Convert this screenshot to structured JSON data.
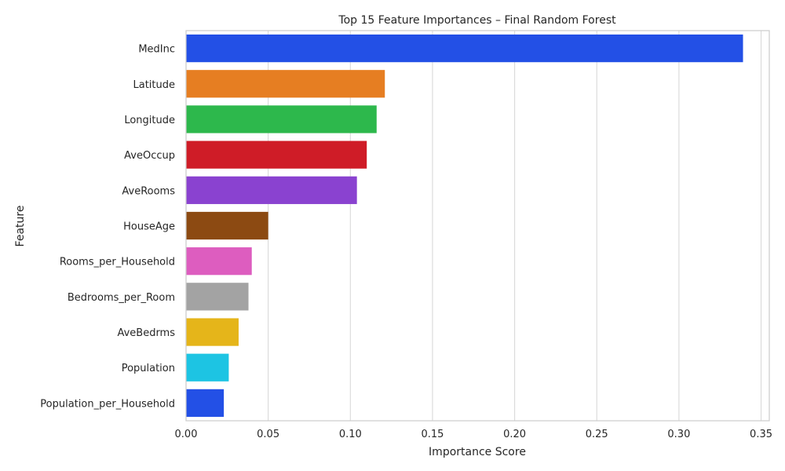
{
  "chart_data": {
    "type": "bar",
    "orientation": "horizontal",
    "title": "Top 15 Feature Importances – Final Random Forest",
    "xlabel": "Importance Score",
    "ylabel": "Feature",
    "xlim": [
      0,
      0.355
    ],
    "xticks": [
      "0.00",
      "0.05",
      "0.10",
      "0.15",
      "0.20",
      "0.25",
      "0.30",
      "0.35"
    ],
    "xtick_values": [
      0,
      0.05,
      0.1,
      0.15,
      0.2,
      0.25,
      0.3,
      0.35
    ],
    "grid": "vertical",
    "categories": [
      "MedInc",
      "Latitude",
      "Longitude",
      "AveOccup",
      "AveRooms",
      "HouseAge",
      "Rooms_per_Household",
      "Bedrooms_per_Room",
      "AveBedrms",
      "Population",
      "Population_per_Household"
    ],
    "values": [
      0.339,
      0.121,
      0.116,
      0.11,
      0.104,
      0.05,
      0.04,
      0.038,
      0.032,
      0.026,
      0.023
    ],
    "colors": [
      "#2350e6",
      "#e67e22",
      "#2db84c",
      "#cf1c27",
      "#8a42d0",
      "#8c4a12",
      "#dd5dbf",
      "#a3a3a3",
      "#e5b51a",
      "#1dc4e3",
      "#2350e6"
    ]
  }
}
